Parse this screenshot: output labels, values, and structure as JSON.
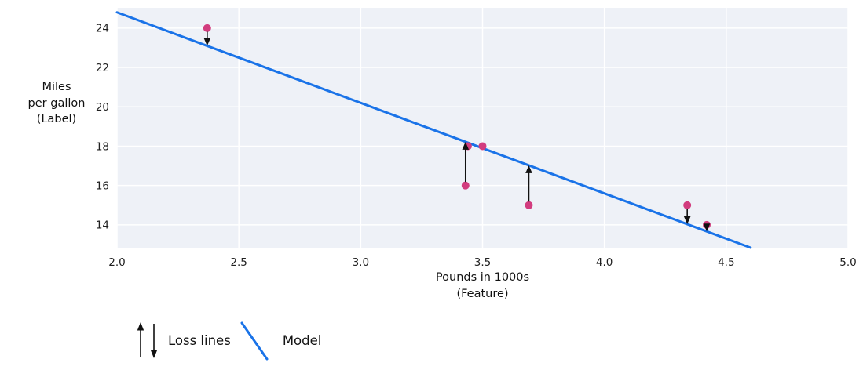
{
  "chart_data": {
    "type": "scatter",
    "title": "",
    "xlabel_lines": [
      "Pounds in 1000s",
      "(Feature)"
    ],
    "ylabel_lines": [
      "Miles",
      "per gallon",
      "(Label)"
    ],
    "xlim": [
      2.0,
      5.0
    ],
    "ylim": [
      12.84,
      25.03
    ],
    "grid": true,
    "x_ticks": [
      {
        "v": 2.0,
        "label": "2.0"
      },
      {
        "v": 2.5,
        "label": "2.5"
      },
      {
        "v": 3.0,
        "label": "3.0"
      },
      {
        "v": 3.5,
        "label": "3.5"
      },
      {
        "v": 4.0,
        "label": "4.0"
      },
      {
        "v": 4.5,
        "label": "4.5"
      },
      {
        "v": 5.0,
        "label": "5.0"
      }
    ],
    "y_ticks": [
      {
        "v": 14,
        "label": "14"
      },
      {
        "v": 16,
        "label": "16"
      },
      {
        "v": 18,
        "label": "18"
      },
      {
        "v": 20,
        "label": "20"
      },
      {
        "v": 22,
        "label": "22"
      },
      {
        "v": 24,
        "label": "24"
      }
    ],
    "points": [
      {
        "x": 2.37,
        "y": 24,
        "loss_arrow": "down"
      },
      {
        "x": 3.44,
        "y": 18,
        "loss_arrow": "none"
      },
      {
        "x": 3.5,
        "y": 18,
        "loss_arrow": "none"
      },
      {
        "x": 3.43,
        "y": 16,
        "loss_arrow": "up"
      },
      {
        "x": 3.69,
        "y": 15,
        "loss_arrow": "up"
      },
      {
        "x": 4.34,
        "y": 15,
        "loss_arrow": "down"
      },
      {
        "x": 4.42,
        "y": 14,
        "loss_arrow": "down"
      }
    ],
    "model_line": {
      "slope": -4.6,
      "intercept": 34
    },
    "legend": [
      {
        "symbol": "loss-arrows",
        "label": "Loss lines"
      },
      {
        "symbol": "model-line",
        "label": "Model"
      }
    ],
    "legend_position": "below-left",
    "colors": {
      "point": "#d23c7e",
      "model_line": "#1a73e8",
      "plot_bg": "#eef1f7",
      "grid": "#ffffff",
      "arrow": "#111111",
      "text": "#1f1f1f"
    }
  }
}
